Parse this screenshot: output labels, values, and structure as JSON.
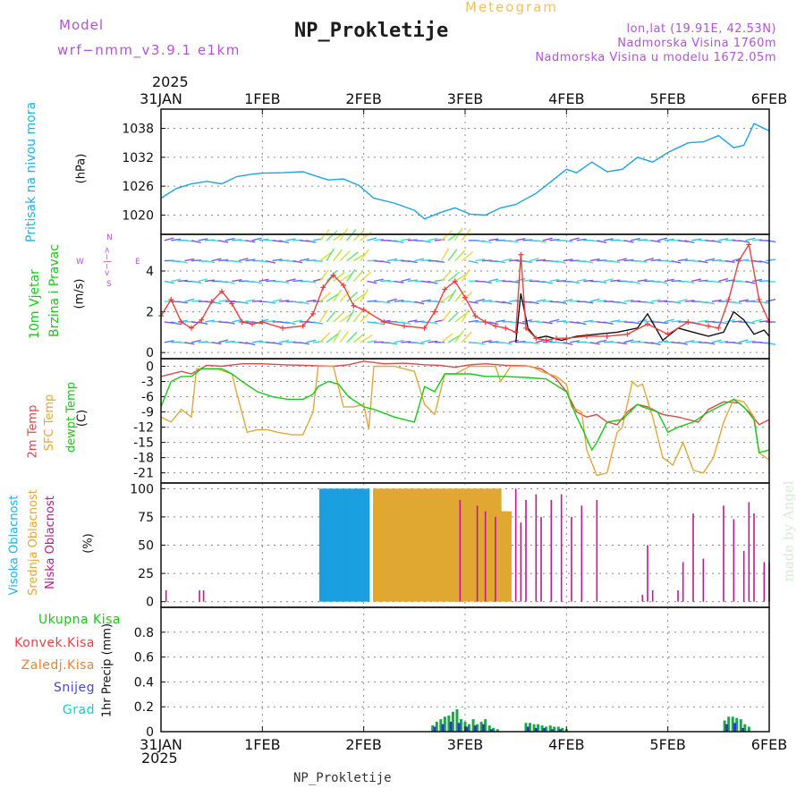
{
  "header": {
    "model_label": "Model",
    "model_name": "wrf−nmm_v3.9.1  e1km",
    "meteogram_label": "Meteogram",
    "station_title": "NP_Prokletije",
    "coords": "lon,lat (19.91E, 42.53N)",
    "altitude": "Nadmorska Visina 1760m",
    "model_altitude": "Nadmorska Visina u modelu 1672.05m",
    "footer_station": "NP_Prokletije",
    "watermark": "made by Angel"
  },
  "time_axis": {
    "year": "2025",
    "labels": [
      "31JAN",
      "1FEB",
      "2FEB",
      "3FEB",
      "4FEB",
      "5FEB",
      "6FEB"
    ],
    "range_days": [
      0,
      6
    ]
  },
  "panel_labels": {
    "pressure": {
      "title": "Pritisak na nivou mora",
      "unit": "(hPa)"
    },
    "wind": {
      "title1": "10m Vjetar",
      "title2": "Brzina i Pravac",
      "unit": "(m/s)",
      "compass_n": "N",
      "compass_s": "S",
      "compass_w": "W",
      "compass_e": "E",
      "compass_arrows": "<−|−>"
    },
    "temperature": {
      "t2m": "2m Temp",
      "sfc": "SFC Temp",
      "dew": "dewpt Temp",
      "unit": "(C)"
    },
    "cloud": {
      "high": "Visoka Oblacnost",
      "mid": "Srednja Oblacnost",
      "low": "Niska Oblacnost",
      "unit": "(%)"
    },
    "precip": {
      "total": "Ukupna Kisa",
      "conv": "Konvek.Kisa",
      "frozen": "Zaledj.Kisa",
      "snow": "Snijeg",
      "hail": "Grad",
      "unit": "1hr Precip (mm)"
    }
  },
  "colors": {
    "pressure": "#1fa3e0",
    "wind_speed": "#111111",
    "wind_gust": "#e84040",
    "t2m": "#e04848",
    "sfc": "#e0a838",
    "dew": "#18c818",
    "cloud_high": "#1a9fe0",
    "cloud_mid": "#e0a830",
    "cloud_low": "#c01a8c",
    "precip_total": "#18a848",
    "precip_snow": "#3434d0",
    "label_purple": "#b054d8",
    "label_cyan": "#1fb0e8",
    "label_green": "#18c818",
    "label_red": "#e84040",
    "label_orange": "#f08030",
    "label_blue": "#4848d8",
    "label_teal": "#20c8c8"
  },
  "chart_data": [
    {
      "type": "line",
      "name": "pressure",
      "ylabel": "(hPa)",
      "ylim": [
        1016,
        1042
      ],
      "yticks": [
        1020,
        1026,
        1032,
        1038
      ],
      "grid": true,
      "series": [
        {
          "name": "Pritisak na nivou mora",
          "x": [
            0,
            0.15,
            0.3,
            0.45,
            0.6,
            0.75,
            0.9,
            1.0,
            1.2,
            1.4,
            1.5,
            1.65,
            1.8,
            1.95,
            2.1,
            2.3,
            2.5,
            2.6,
            2.75,
            2.9,
            3.05,
            3.2,
            3.35,
            3.5,
            3.7,
            3.85,
            4.0,
            4.1,
            4.25,
            4.4,
            4.55,
            4.7,
            4.85,
            5.0,
            5.2,
            5.35,
            5.5,
            5.65,
            5.75,
            5.85,
            6.0
          ],
          "values": [
            1023.5,
            1025.5,
            1026.5,
            1027,
            1026.5,
            1028,
            1028.5,
            1028.7,
            1028.8,
            1029,
            1028.3,
            1027.3,
            1027.5,
            1026.2,
            1023.5,
            1022.5,
            1021,
            1019.2,
            1020.5,
            1021.5,
            1020.2,
            1020,
            1021.5,
            1022.2,
            1024.5,
            1027,
            1029.5,
            1028.8,
            1031,
            1029,
            1029.5,
            1032,
            1031,
            1033,
            1035,
            1035.2,
            1036.5,
            1034,
            1034.5,
            1039,
            1037.5
          ]
        }
      ]
    },
    {
      "type": "line",
      "name": "wind",
      "ylabel": "(m/s)",
      "ylim": [
        -0.3,
        5.8
      ],
      "yticks": [
        0,
        2,
        4
      ],
      "grid": true,
      "series": [
        {
          "name": "speed",
          "x": [
            3.5,
            3.55,
            3.62,
            3.7,
            3.8,
            3.95,
            4.1,
            4.3,
            4.5,
            4.7,
            4.8,
            4.95,
            5.1,
            5.25,
            5.4,
            5.55,
            5.65,
            5.75,
            5.85,
            5.95,
            6.0
          ],
          "values": [
            0.5,
            2.9,
            1.2,
            0.7,
            0.8,
            0.6,
            0.8,
            0.9,
            1.0,
            1.2,
            1.9,
            0.6,
            1.2,
            1.0,
            0.8,
            1.0,
            2.0,
            1.6,
            0.9,
            1.1,
            0.8
          ]
        },
        {
          "name": "gust",
          "x": [
            0,
            0.1,
            0.2,
            0.3,
            0.4,
            0.5,
            0.6,
            0.7,
            0.8,
            0.9,
            1.0,
            1.2,
            1.4,
            1.5,
            1.6,
            1.7,
            1.8,
            1.9,
            2.0,
            2.2,
            2.4,
            2.6,
            2.7,
            2.8,
            2.9,
            3.0,
            3.1,
            3.2,
            3.3,
            3.4,
            3.5,
            3.55,
            3.6,
            3.7,
            3.8,
            3.9,
            4.0,
            4.2,
            4.4,
            4.6,
            4.8,
            5.0,
            5.2,
            5.4,
            5.5,
            5.6,
            5.7,
            5.8,
            5.9,
            6.0
          ],
          "values": [
            1.8,
            2.6,
            1.5,
            1.2,
            1.6,
            2.5,
            3.0,
            2.4,
            1.5,
            1.4,
            1.5,
            1.2,
            1.3,
            1.9,
            3.2,
            3.8,
            3.3,
            2.3,
            2.1,
            1.5,
            1.3,
            1.2,
            2.0,
            3.1,
            3.5,
            2.7,
            1.8,
            1.5,
            1.3,
            1.2,
            1.0,
            4.8,
            1.2,
            0.7,
            0.6,
            0.7,
            0.7,
            0.8,
            0.8,
            0.9,
            1.4,
            0.9,
            1.5,
            1.3,
            1.2,
            2.6,
            4.5,
            5.3,
            2.6,
            1.5
          ]
        }
      ]
    },
    {
      "type": "line",
      "name": "temperature",
      "ylabel": "(C)",
      "ylim": [
        -23,
        1.5
      ],
      "yticks": [
        0,
        -3,
        -6,
        -9,
        -12,
        -15,
        -18,
        -21
      ],
      "grid": true,
      "series": [
        {
          "name": "2m Temp",
          "x": [
            0,
            0.2,
            0.3,
            0.45,
            0.6,
            0.8,
            1.0,
            1.2,
            1.4,
            1.55,
            1.7,
            1.85,
            2.0,
            2.2,
            2.4,
            2.6,
            2.75,
            2.9,
            3.05,
            3.2,
            3.4,
            3.6,
            3.75,
            3.9,
            4.0,
            4.1,
            4.2,
            4.3,
            4.4,
            4.5,
            4.6,
            4.7,
            4.8,
            4.95,
            5.1,
            5.3,
            5.4,
            5.55,
            5.7,
            5.8,
            5.9,
            6.0
          ],
          "values": [
            -2,
            -1,
            -1.5,
            0.2,
            0,
            0.5,
            0.5,
            0.3,
            0.2,
            0.1,
            0,
            0.3,
            1.0,
            0.5,
            0.6,
            0.3,
            0.2,
            -0.2,
            0.3,
            0.5,
            0.2,
            0.1,
            -0.5,
            -2.5,
            -5,
            -9,
            -10,
            -9.5,
            -11,
            -11.5,
            -9,
            -7.5,
            -8,
            -9.5,
            -10,
            -11,
            -8.5,
            -7,
            -7.2,
            -9,
            -11.5,
            -10.5
          ]
        },
        {
          "name": "SFC Temp",
          "x": [
            0,
            0.1,
            0.2,
            0.3,
            0.35,
            0.55,
            0.7,
            0.75,
            0.85,
            0.95,
            1.05,
            1.15,
            1.3,
            1.4,
            1.5,
            1.55,
            1.7,
            1.8,
            1.9,
            2.0,
            2.05,
            2.1,
            2.3,
            2.5,
            2.6,
            2.7,
            2.8,
            2.9,
            3.05,
            3.3,
            3.35,
            3.45,
            3.55,
            3.65,
            3.75,
            3.9,
            4.0,
            4.05,
            4.15,
            4.2,
            4.3,
            4.4,
            4.5,
            4.55,
            4.65,
            4.7,
            4.75,
            4.85,
            4.95,
            5.05,
            5.15,
            5.25,
            5.35,
            5.45,
            5.55,
            5.65,
            5.75,
            5.85,
            5.9,
            6.0
          ],
          "values": [
            -10,
            -11,
            -8.5,
            -10,
            -0.5,
            -0.5,
            -1.5,
            -5.5,
            -13,
            -12.5,
            -12.5,
            -13,
            -13.5,
            -13.5,
            -9,
            0,
            0,
            -8,
            -8,
            -7.5,
            -12.5,
            0,
            0,
            -1,
            -7.5,
            -9.5,
            -1.5,
            -1.5,
            0,
            0,
            -3,
            0,
            0,
            0,
            -1,
            -2,
            -3.5,
            -8,
            -9,
            -16.5,
            -21.5,
            -21,
            -13,
            -12,
            -3,
            -4,
            -3.5,
            -10,
            -18,
            -19.5,
            -15,
            -20.5,
            -21,
            -18,
            -11,
            -6.5,
            -7,
            -10,
            -17,
            -18.5
          ]
        },
        {
          "name": "dewpt Temp",
          "x": [
            0,
            0.1,
            0.2,
            0.3,
            0.4,
            0.5,
            0.6,
            0.7,
            0.8,
            0.95,
            1.1,
            1.25,
            1.4,
            1.5,
            1.55,
            1.65,
            1.75,
            1.85,
            2.0,
            2.1,
            2.3,
            2.5,
            2.6,
            2.7,
            2.8,
            2.9,
            3.05,
            3.2,
            3.4,
            3.6,
            3.8,
            4.0,
            4.1,
            4.15,
            4.25,
            4.3,
            4.4,
            4.55,
            4.7,
            4.75,
            4.9,
            5.0,
            5.1,
            5.25,
            5.4,
            5.55,
            5.65,
            5.75,
            5.85,
            5.9,
            6.0
          ],
          "values": [
            -8,
            -3,
            -2,
            -2,
            -0.5,
            -0.5,
            -0.5,
            -1.5,
            -3,
            -5,
            -6,
            -6.5,
            -6.5,
            -5.5,
            -4,
            -3,
            -3.5,
            -6,
            -8,
            -8.5,
            -10,
            -11,
            -4,
            -5,
            -1.5,
            -1.5,
            -1.5,
            -2,
            -2,
            -2.2,
            -2.5,
            -5,
            -10,
            -12,
            -16.5,
            -15,
            -11,
            -10.5,
            -7.5,
            -8,
            -9,
            -13,
            -12,
            -11,
            -9,
            -7.5,
            -6.5,
            -8,
            -10.5,
            -17,
            -16.5
          ]
        }
      ]
    },
    {
      "type": "bar",
      "name": "cloud",
      "ylabel": "(%)",
      "ylim": [
        -5,
        105
      ],
      "yticks": [
        0,
        25,
        50,
        75,
        100
      ],
      "grid": true,
      "series": [
        {
          "name": "Visoka Oblacnost",
          "ranges": [
            [
              1.57,
              2.05,
              100
            ],
            [
              2.85,
              2.88,
              35
            ]
          ]
        },
        {
          "name": "Srednja Oblacnost",
          "ranges": [
            [
              2.1,
              3.35,
              100
            ],
            [
              3.36,
              3.45,
              80
            ]
          ]
        },
        {
          "name": "Niska Oblacnost",
          "x": [
            0.05,
            0.38,
            0.42,
            2.95,
            3.12,
            3.2,
            3.3,
            3.5,
            3.55,
            3.6,
            3.7,
            3.75,
            3.85,
            3.95,
            4.05,
            4.15,
            4.3,
            4.75,
            4.8,
            4.85,
            5.1,
            5.15,
            5.25,
            5.35,
            5.55,
            5.65,
            5.75,
            5.8,
            5.85,
            5.95,
            6.0
          ],
          "values": [
            10,
            10,
            10,
            90,
            85,
            80,
            75,
            100,
            70,
            90,
            95,
            75,
            90,
            95,
            75,
            85,
            90,
            6,
            50,
            10,
            10,
            35,
            78,
            38,
            85,
            73,
            45,
            88,
            78,
            35,
            35
          ]
        }
      ]
    },
    {
      "type": "bar",
      "name": "precip",
      "ylabel": "1hr Precip (mm)",
      "ylim": [
        0,
        1
      ],
      "yticks": [
        0,
        0.2,
        0.4,
        0.6,
        0.8
      ],
      "grid": true,
      "series": [
        {
          "name": "Ukupna Kisa",
          "x": [
            2.68,
            2.72,
            2.76,
            2.8,
            2.84,
            2.88,
            2.92,
            2.96,
            3.0,
            3.04,
            3.08,
            3.12,
            3.16,
            3.2,
            3.24,
            3.28,
            3.32,
            3.6,
            3.64,
            3.68,
            3.72,
            3.76,
            3.8,
            3.84,
            3.88,
            3.92,
            3.96,
            4.0,
            5.56,
            5.6,
            5.64,
            5.68,
            5.72,
            5.76,
            5.8
          ],
          "values": [
            0.05,
            0.08,
            0.1,
            0.12,
            0.13,
            0.16,
            0.18,
            0.1,
            0.08,
            0.06,
            0.1,
            0.06,
            0.08,
            0.1,
            0.05,
            0.03,
            0.02,
            0.07,
            0.07,
            0.06,
            0.06,
            0.05,
            0.04,
            0.05,
            0.04,
            0.04,
            0.03,
            0.02,
            0.09,
            0.12,
            0.12,
            0.11,
            0.1,
            0.06,
            0.04
          ]
        },
        {
          "name": "Snijeg",
          "x": [
            2.7,
            2.78,
            2.86,
            2.94,
            3.02,
            3.1,
            3.18,
            3.26,
            3.62,
            3.7,
            3.78,
            3.86,
            3.94,
            5.58,
            5.66,
            5.74
          ],
          "values": [
            0.04,
            0.06,
            0.08,
            0.07,
            0.04,
            0.05,
            0.06,
            0.02,
            0.04,
            0.03,
            0.03,
            0.02,
            0.02,
            0.06,
            0.07,
            0.03
          ]
        }
      ]
    }
  ]
}
